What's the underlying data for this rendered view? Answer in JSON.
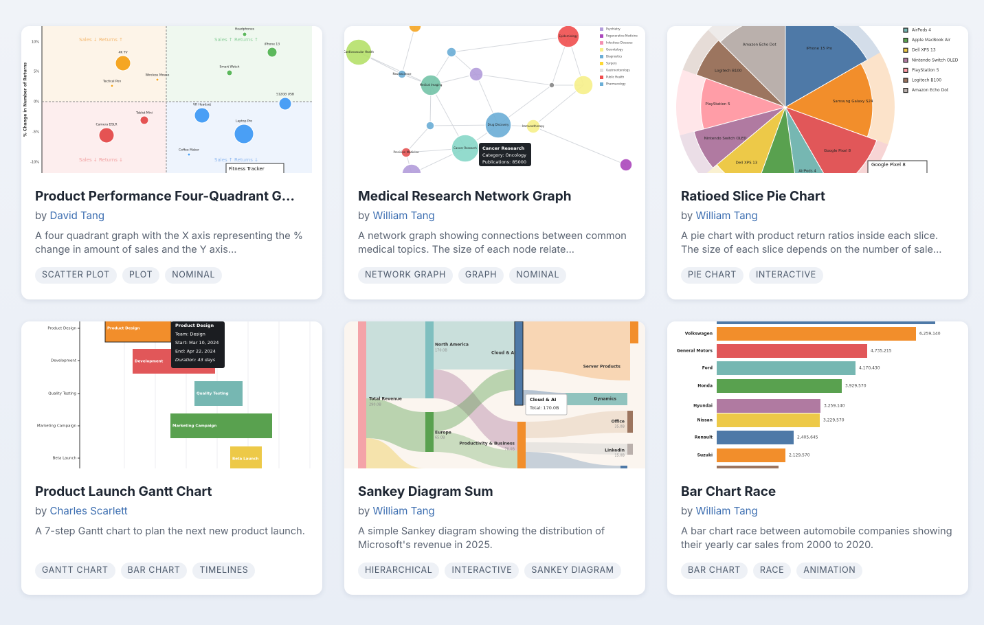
{
  "author_prefix": "by",
  "cards": [
    {
      "title": "Product Performance Four-Quadrant G...",
      "author": "David Tang",
      "description": "A four quadrant graph with the X axis representing the % change in amount of sales and the Y axis...",
      "tags": [
        "SCATTER PLOT",
        "PLOT",
        "NOMINAL"
      ],
      "preview": {
        "axis_title": "% Change in Number of Returns",
        "ticks": [
          "10%",
          "5%",
          "0%",
          "-5%",
          "-10%"
        ],
        "quadrants": [
          "Sales ↓ Returns ↑",
          "Sales ↑ Returns ↑",
          "Sales ↓ Returns ↓",
          "Sales ↑ Returns ↓"
        ],
        "labels": [
          "4K TV",
          "Headphones",
          "iPhone 13",
          "Smart Watch",
          "Tactical Pen",
          "Wireless Mouse",
          "512GB USB",
          "Tablet Mini",
          "VR Headset",
          "Camera DSLR",
          "Laptop Pro",
          "Coffee Maker"
        ],
        "tooltip": [
          "Fitness Tracker"
        ]
      }
    },
    {
      "title": "Medical Research Network Graph",
      "author": "William Tang",
      "description": "A network graph showing connections between common medical topics. The size of each node relate...",
      "tags": [
        "NETWORK GRAPH",
        "GRAPH",
        "NOMINAL"
      ],
      "preview": {
        "labels": [
          "Cardiovascular Health",
          "Epidemiology",
          "Neuroscience",
          "Medical Imaging",
          "Drug Discovery",
          "Cancer Research",
          "Precision Medicine",
          "Immunotherapy"
        ],
        "legend": [
          "Psychiatry",
          "Regenerative Medicine",
          "Infectious Diseases",
          "Gerontology",
          "Diagnostics",
          "Surgery",
          "Gastroenterology",
          "Public Health",
          "Pharmacology"
        ],
        "tooltip": [
          "Cancer Research",
          "Category: Oncology",
          "Publications: 85000"
        ]
      }
    },
    {
      "title": "Ratioed Slice Pie Chart",
      "author": "William Tang",
      "description": "A pie chart with product return ratios inside each slice. The size of each slice depends on the number of sale...",
      "tags": [
        "PIE CHART",
        "INTERACTIVE"
      ],
      "preview": {
        "labels": [
          "iPhone 15 Pro",
          "Samsung Galaxy S24",
          "Google Pixel 8",
          "AirPods 4",
          "Dell XPS 13",
          "Nintendo Switch OLED",
          "PlayStation 5",
          "Logitech B100",
          "Amazon Echo Dot"
        ],
        "legend": [
          "AirPods 4",
          "Apple MacBook Air",
          "Dell XPS 13",
          "Nintendo Switch OLED",
          "PlayStation 5",
          "Logitech B100",
          "Amazon Echo Dot"
        ],
        "tooltip": [
          "Google Pixel 8"
        ]
      }
    },
    {
      "title": "Product Launch Gantt Chart",
      "author": "Charles Scarlett",
      "description": "A 7-step Gantt chart to plan the next new product launch.",
      "tags": [
        "GANTT CHART",
        "BAR CHART",
        "TIMELINES"
      ],
      "preview": {
        "labels": [
          "Product Design",
          "Development",
          "Quality Testing",
          "Marketing Campaign",
          "Beta Launch"
        ],
        "tooltip": [
          "Product Design",
          "Team: Design",
          "Start: Mar 10, 2024",
          "End: Apr 22, 2024",
          "Duration: 43 days"
        ]
      }
    },
    {
      "title": "Sankey Diagram Sum",
      "author": "William Tang",
      "description": "A simple Sankey diagram showing the distribution of Microsoft's revenue in 2025.",
      "tags": [
        "HIERARCHICAL",
        "INTERACTIVE",
        "SANKEY DIAGRAM"
      ],
      "preview": {
        "labels": [
          "Total Revenue",
          "290.0B",
          "North America",
          "170.0B",
          "Europe",
          "65.0B",
          "Cloud & AI",
          "Server Products",
          "Dynamics",
          "Office",
          "35.0B",
          "LinkedIn",
          "15.0B",
          "Productivity & Business",
          "70.0B"
        ],
        "tooltip": [
          "Cloud & AI",
          "Total: 170.0B"
        ]
      }
    },
    {
      "title": "Bar Chart Race",
      "author": "William Tang",
      "description": "A bar chart race between automobile companies showing their yearly car sales from 2000 to 2020.",
      "tags": [
        "BAR CHART",
        "RACE",
        "ANIMATION"
      ],
      "preview": {
        "labels": [
          "Volkswagen",
          "General Motors",
          "Ford",
          "Honda",
          "Hyundai",
          "Nissan",
          "Renault",
          "Suzuki"
        ],
        "value_labels": [
          "6,259,140",
          "4,735,215",
          "4,170,430",
          "3,929,570",
          "3,259,140",
          "3,229,570",
          "2,405,645",
          "2,129,570"
        ]
      }
    }
  ]
}
